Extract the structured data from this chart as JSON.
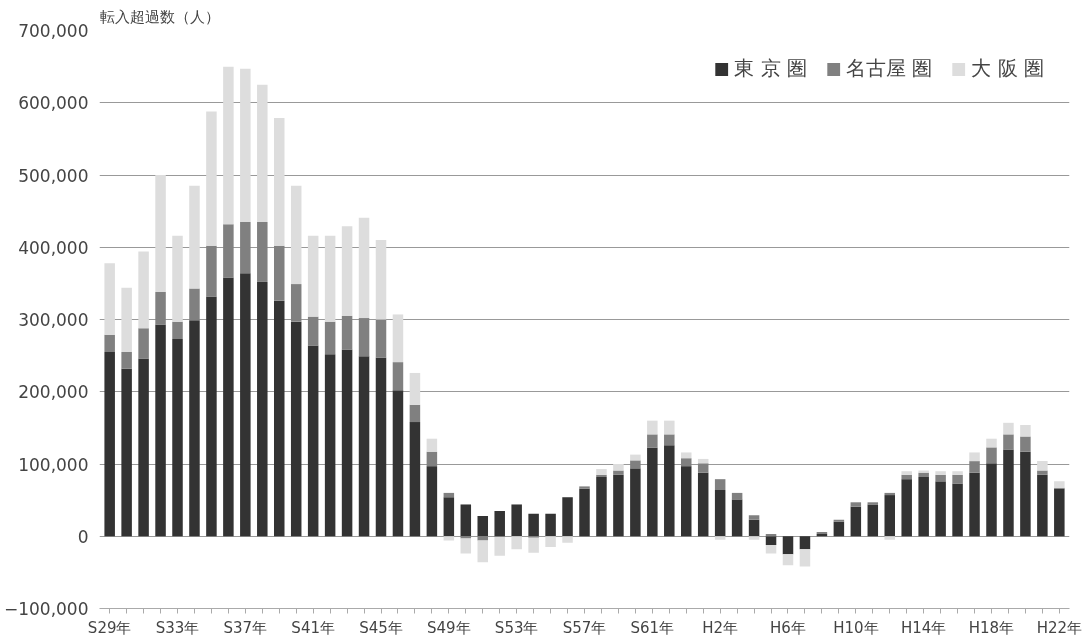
{
  "chart_data": {
    "type": "bar",
    "stacked": true,
    "ylabel": "転入超過数（人）",
    "categories": [
      "S29年",
      null,
      null,
      null,
      "S33年",
      null,
      null,
      null,
      "S37年",
      null,
      null,
      null,
      "S41年",
      null,
      null,
      null,
      "S45年",
      null,
      null,
      null,
      "S49年",
      null,
      null,
      null,
      "S53年",
      null,
      null,
      null,
      "S57年",
      null,
      null,
      null,
      "S61年",
      null,
      null,
      null,
      "H2年",
      null,
      null,
      null,
      "H6年",
      null,
      null,
      null,
      "H10年",
      null,
      null,
      null,
      "H14年",
      null,
      null,
      null,
      "H18年",
      null,
      null,
      null,
      "H22年"
    ],
    "series": [
      {
        "name": "東 京 圏",
        "color": "#333333",
        "values": [
          255000,
          232000,
          246000,
          293000,
          273000,
          299000,
          332000,
          358000,
          364000,
          352000,
          326000,
          297000,
          264000,
          252000,
          258000,
          249000,
          247000,
          202000,
          158000,
          97000,
          54000,
          44000,
          28000,
          35000,
          44000,
          31000,
          31000,
          54000,
          66000,
          82000,
          85000,
          94000,
          123000,
          126000,
          97000,
          88000,
          64000,
          51000,
          23000,
          -12000,
          -25000,
          -18000,
          3000,
          20000,
          41000,
          44000,
          57000,
          79000,
          82000,
          76000,
          73000,
          88000,
          101000,
          120000,
          117000,
          85000,
          66000
        ]
      },
      {
        "name": "名古屋 圏",
        "color": "#808080",
        "values": [
          24000,
          23000,
          42000,
          45000,
          24000,
          44000,
          70000,
          74000,
          71000,
          83000,
          76000,
          52000,
          40000,
          45000,
          47000,
          53000,
          53000,
          39000,
          24000,
          20000,
          6000,
          -3000,
          -6000,
          -1000,
          0,
          -2000,
          0,
          0,
          3000,
          3000,
          6000,
          11000,
          18000,
          15000,
          11000,
          13000,
          15000,
          9000,
          6000,
          3000,
          0,
          0,
          3000,
          3000,
          6000,
          3000,
          3000,
          6000,
          6000,
          9000,
          12000,
          16000,
          22000,
          21000,
          21000,
          6000,
          1000
        ]
      },
      {
        "name": "大 阪 圏",
        "color": "#dddddd",
        "values": [
          99000,
          89000,
          106000,
          162000,
          119000,
          142000,
          186000,
          218000,
          212000,
          190000,
          177000,
          136000,
          112000,
          119000,
          124000,
          139000,
          110000,
          66000,
          44000,
          18000,
          -6000,
          -21000,
          -30000,
          -26000,
          -18000,
          -21000,
          -15000,
          -9000,
          0,
          8000,
          9000,
          8000,
          19000,
          19000,
          8000,
          6000,
          -5000,
          0,
          -5000,
          -12000,
          -15000,
          -24000,
          null,
          null,
          0,
          null,
          -5000,
          5000,
          3000,
          5000,
          5000,
          12000,
          12000,
          16000,
          16000,
          13000,
          9000
        ]
      }
    ],
    "ylim": [
      -100000,
      700000
    ],
    "yticks": [
      {
        "value": -100000,
        "label": "−100,000"
      },
      {
        "value": 0,
        "label": "0"
      },
      {
        "value": 100000,
        "label": "100,000"
      },
      {
        "value": 200000,
        "label": "200,000"
      },
      {
        "value": 300000,
        "label": "300,000"
      },
      {
        "value": 400000,
        "label": "400,000"
      },
      {
        "value": 500000,
        "label": "500,000"
      },
      {
        "value": 600000,
        "label": "600,000"
      },
      {
        "value": 700000,
        "label": "700,000"
      }
    ],
    "grid": "y",
    "legend": "top right"
  }
}
